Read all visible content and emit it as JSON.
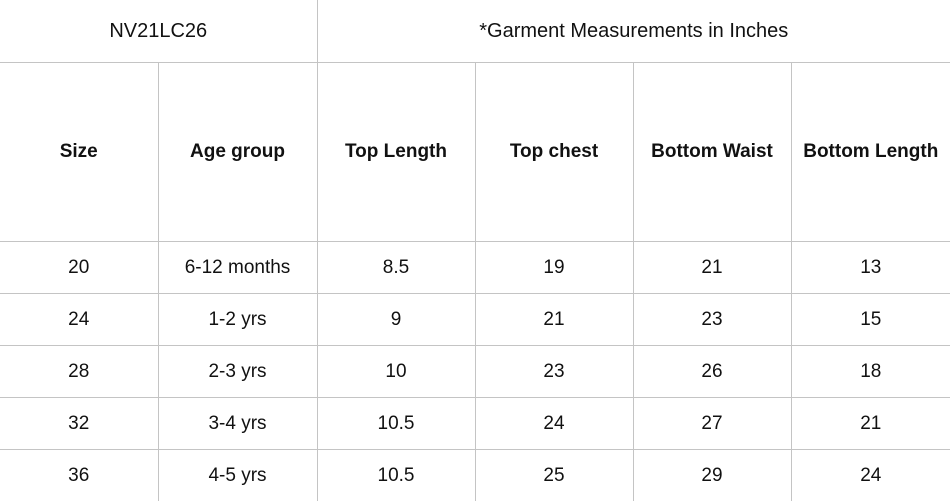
{
  "header": {
    "code": "NV21LC26",
    "title": "*Garment Measurements in Inches"
  },
  "table": {
    "columns": [
      "Size",
      "Age group",
      "Top Length",
      "Top chest",
      "Bottom Waist",
      "Bottom Length"
    ],
    "rows": [
      [
        "20",
        "6-12 months",
        "8.5",
        "19",
        "21",
        "13"
      ],
      [
        "24",
        "1-2 yrs",
        "9",
        "21",
        "23",
        "15"
      ],
      [
        "28",
        "2-3 yrs",
        "10",
        "23",
        "26",
        "18"
      ],
      [
        "32",
        "3-4 yrs",
        "10.5",
        "24",
        "27",
        "21"
      ],
      [
        "36",
        "4-5 yrs",
        "10.5",
        "25",
        "29",
        "24"
      ]
    ]
  }
}
